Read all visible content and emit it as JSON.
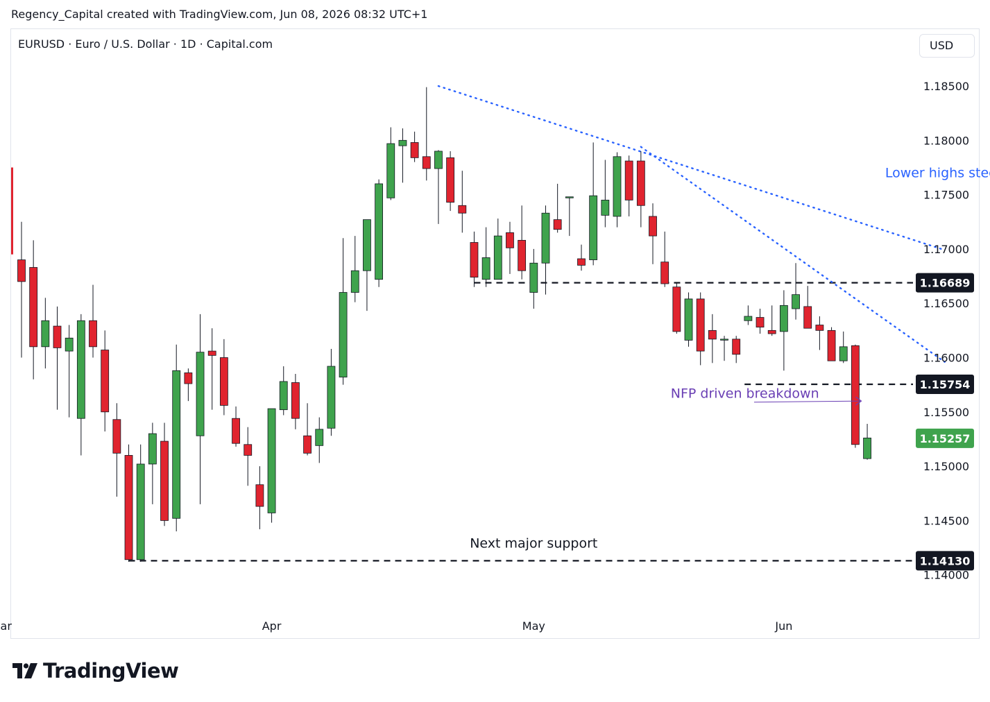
{
  "header": {
    "caption": "Regency_Capital created with TradingView.com, Jun 08, 2026 08:32 UTC+1",
    "symbol_title": "EURUSD · Euro / U.S. Dollar · 1D · Capital.com",
    "currency": "USD"
  },
  "brand": {
    "name": "TradingView",
    "icon": "tradingview-logo-icon"
  },
  "colors": {
    "up": "#3fa34d",
    "down": "#e0242f",
    "trend": "#2962ff",
    "annotation_purple": "#6a3fb4",
    "price_tag_dark": "#131722",
    "price_tag_last": "#3fa34d",
    "axis_text": "#131722"
  },
  "chart_data": {
    "type": "candlestick",
    "title": "",
    "xlabel": "",
    "ylabel": "",
    "ylim": [
      1.1367,
      1.188
    ],
    "y_ticks": [
      1.185,
      1.18,
      1.175,
      1.17,
      1.165,
      1.16,
      1.155,
      1.15,
      1.145,
      1.14
    ],
    "y_tick_labels": [
      "1.18500",
      "1.18000",
      "1.17500",
      "1.17000",
      "1.16500",
      "1.16000",
      "1.15500",
      "1.15000",
      "1.14500",
      "1.14000"
    ],
    "x_labels": [
      {
        "label": "Mar",
        "index": -1.7
      },
      {
        "label": "Apr",
        "index": 21
      },
      {
        "label": "May",
        "index": 43
      },
      {
        "label": "Jun",
        "index": 64
      }
    ],
    "grid": false,
    "candles": [
      {
        "o": 1.169,
        "h": 1.1725,
        "l": 1.16,
        "c": 1.167
      },
      {
        "o": 1.1683,
        "h": 1.1708,
        "l": 1.158,
        "c": 1.161
      },
      {
        "o": 1.161,
        "h": 1.1655,
        "l": 1.159,
        "c": 1.1634
      },
      {
        "o": 1.1629,
        "h": 1.1647,
        "l": 1.1552,
        "c": 1.1609
      },
      {
        "o": 1.1606,
        "h": 1.163,
        "l": 1.1545,
        "c": 1.1618
      },
      {
        "o": 1.1544,
        "h": 1.164,
        "l": 1.151,
        "c": 1.1634
      },
      {
        "o": 1.1634,
        "h": 1.1667,
        "l": 1.16,
        "c": 1.161
      },
      {
        "o": 1.1607,
        "h": 1.1625,
        "l": 1.1532,
        "c": 1.155
      },
      {
        "o": 1.1543,
        "h": 1.1558,
        "l": 1.1472,
        "c": 1.1512
      },
      {
        "o": 1.151,
        "h": 1.152,
        "l": 1.1412,
        "c": 1.1414
      },
      {
        "o": 1.1414,
        "h": 1.152,
        "l": 1.1412,
        "c": 1.1502
      },
      {
        "o": 1.1502,
        "h": 1.154,
        "l": 1.1465,
        "c": 1.153
      },
      {
        "o": 1.1523,
        "h": 1.154,
        "l": 1.1445,
        "c": 1.145
      },
      {
        "o": 1.1452,
        "h": 1.1612,
        "l": 1.144,
        "c": 1.1588
      },
      {
        "o": 1.1586,
        "h": 1.159,
        "l": 1.156,
        "c": 1.1576
      },
      {
        "o": 1.1528,
        "h": 1.164,
        "l": 1.1465,
        "c": 1.1605
      },
      {
        "o": 1.1606,
        "h": 1.1627,
        "l": 1.1552,
        "c": 1.1602
      },
      {
        "o": 1.16,
        "h": 1.1617,
        "l": 1.1547,
        "c": 1.1556
      },
      {
        "o": 1.1544,
        "h": 1.1555,
        "l": 1.1518,
        "c": 1.1521
      },
      {
        "o": 1.152,
        "h": 1.1536,
        "l": 1.1482,
        "c": 1.151
      },
      {
        "o": 1.1483,
        "h": 1.15,
        "l": 1.1442,
        "c": 1.1463
      },
      {
        "o": 1.1457,
        "h": 1.1548,
        "l": 1.1448,
        "c": 1.1553
      },
      {
        "o": 1.1552,
        "h": 1.1592,
        "l": 1.1547,
        "c": 1.1578
      },
      {
        "o": 1.1577,
        "h": 1.1585,
        "l": 1.1534,
        "c": 1.1544
      },
      {
        "o": 1.1528,
        "h": 1.1558,
        "l": 1.151,
        "c": 1.1512
      },
      {
        "o": 1.1519,
        "h": 1.1545,
        "l": 1.1503,
        "c": 1.1534
      },
      {
        "o": 1.1535,
        "h": 1.1608,
        "l": 1.1528,
        "c": 1.1592
      },
      {
        "o": 1.1582,
        "h": 1.171,
        "l": 1.1575,
        "c": 1.166
      },
      {
        "o": 1.166,
        "h": 1.1712,
        "l": 1.1651,
        "c": 1.168
      },
      {
        "o": 1.168,
        "h": 1.1725,
        "l": 1.1643,
        "c": 1.1727
      },
      {
        "o": 1.1672,
        "h": 1.1764,
        "l": 1.1665,
        "c": 1.176
      },
      {
        "o": 1.1747,
        "h": 1.1812,
        "l": 1.1745,
        "c": 1.1797
      },
      {
        "o": 1.1795,
        "h": 1.1811,
        "l": 1.1761,
        "c": 1.18
      },
      {
        "o": 1.1798,
        "h": 1.1808,
        "l": 1.178,
        "c": 1.1784
      },
      {
        "o": 1.1785,
        "h": 1.1849,
        "l": 1.1763,
        "c": 1.1774
      },
      {
        "o": 1.1774,
        "h": 1.1791,
        "l": 1.1723,
        "c": 1.179
      },
      {
        "o": 1.1784,
        "h": 1.179,
        "l": 1.1735,
        "c": 1.1743
      },
      {
        "o": 1.174,
        "h": 1.1772,
        "l": 1.1715,
        "c": 1.1733
      },
      {
        "o": 1.1706,
        "h": 1.1716,
        "l": 1.1665,
        "c": 1.1674
      },
      {
        "o": 1.1672,
        "h": 1.172,
        "l": 1.1665,
        "c": 1.1692
      },
      {
        "o": 1.1672,
        "h": 1.1728,
        "l": 1.1672,
        "c": 1.1712
      },
      {
        "o": 1.1715,
        "h": 1.1725,
        "l": 1.1677,
        "c": 1.1701
      },
      {
        "o": 1.1708,
        "h": 1.174,
        "l": 1.1672,
        "c": 1.168
      },
      {
        "o": 1.166,
        "h": 1.17,
        "l": 1.1645,
        "c": 1.1687
      },
      {
        "o": 1.1687,
        "h": 1.174,
        "l": 1.1658,
        "c": 1.1733
      },
      {
        "o": 1.1727,
        "h": 1.176,
        "l": 1.1715,
        "c": 1.1718
      },
      {
        "o": 1.1747,
        "h": 1.1748,
        "l": 1.1712,
        "c": 1.1748
      },
      {
        "o": 1.1691,
        "h": 1.1704,
        "l": 1.168,
        "c": 1.1685
      },
      {
        "o": 1.169,
        "h": 1.1798,
        "l": 1.1685,
        "c": 1.1749
      },
      {
        "o": 1.1731,
        "h": 1.1782,
        "l": 1.172,
        "c": 1.1745
      },
      {
        "o": 1.173,
        "h": 1.1789,
        "l": 1.172,
        "c": 1.1785
      },
      {
        "o": 1.1781,
        "h": 1.1786,
        "l": 1.173,
        "c": 1.1745
      },
      {
        "o": 1.1781,
        "h": 1.179,
        "l": 1.172,
        "c": 1.174
      },
      {
        "o": 1.173,
        "h": 1.1742,
        "l": 1.1686,
        "c": 1.1712
      },
      {
        "o": 1.1688,
        "h": 1.1716,
        "l": 1.1665,
        "c": 1.1668
      },
      {
        "o": 1.1665,
        "h": 1.1669,
        "l": 1.1622,
        "c": 1.1624
      },
      {
        "o": 1.1616,
        "h": 1.166,
        "l": 1.161,
        "c": 1.1654
      },
      {
        "o": 1.1654,
        "h": 1.166,
        "l": 1.1593,
        "c": 1.1606
      },
      {
        "o": 1.1625,
        "h": 1.164,
        "l": 1.1595,
        "c": 1.1617
      },
      {
        "o": 1.1617,
        "h": 1.162,
        "l": 1.1597,
        "c": 1.1617
      },
      {
        "o": 1.1617,
        "h": 1.162,
        "l": 1.1595,
        "c": 1.1603
      },
      {
        "o": 1.1634,
        "h": 1.1648,
        "l": 1.163,
        "c": 1.1638
      },
      {
        "o": 1.1637,
        "h": 1.1645,
        "l": 1.1622,
        "c": 1.1628
      },
      {
        "o": 1.1625,
        "h": 1.1648,
        "l": 1.162,
        "c": 1.1622
      },
      {
        "o": 1.1624,
        "h": 1.1662,
        "l": 1.1588,
        "c": 1.1648
      },
      {
        "o": 1.1645,
        "h": 1.1687,
        "l": 1.1635,
        "c": 1.1658
      },
      {
        "o": 1.1647,
        "h": 1.1666,
        "l": 1.1628,
        "c": 1.1627
      },
      {
        "o": 1.163,
        "h": 1.1638,
        "l": 1.1607,
        "c": 1.1625
      },
      {
        "o": 1.1625,
        "h": 1.1628,
        "l": 1.1597,
        "c": 1.1597
      },
      {
        "o": 1.1597,
        "h": 1.1624,
        "l": 1.1595,
        "c": 1.161
      },
      {
        "o": 1.1611,
        "h": 1.1612,
        "l": 1.1517,
        "c": 1.152
      },
      {
        "o": 1.1507,
        "h": 1.1539,
        "l": 1.1506,
        "c": 1.1526
      }
    ],
    "levels": [
      {
        "price": 1.16689,
        "label": "1.16689",
        "from_index": 38.0
      },
      {
        "price": 1.15754,
        "label": "1.15754",
        "from_index": 60.7
      },
      {
        "price": 1.1413,
        "label": "1.14130",
        "from_index": 9.0
      }
    ],
    "last_price": {
      "price": 1.15257,
      "label": "1.15257"
    },
    "trendlines": [
      {
        "from": {
          "index": 35,
          "price": 1.185
        },
        "to": {
          "index": 77.5,
          "price": 1.1699
        }
      },
      {
        "from": {
          "index": 52,
          "price": 1.1794
        },
        "to": {
          "index": 77.5,
          "price": 1.1596
        }
      }
    ],
    "annotations": [
      {
        "text": "Lower highs steepen",
        "index": 72.5,
        "price": 1.1766,
        "color": "trend"
      },
      {
        "text": "NFP driven breakdown",
        "index": 54.5,
        "price": 1.1563,
        "color": "annotation_purple",
        "arrow": {
          "from": {
            "index": 61.5,
            "price": 1.1559
          },
          "to": {
            "index": 70.5,
            "price": 1.156
          }
        }
      },
      {
        "text": "Next major support",
        "index": 43,
        "price": 1.1425,
        "color": "axis_text"
      }
    ]
  }
}
